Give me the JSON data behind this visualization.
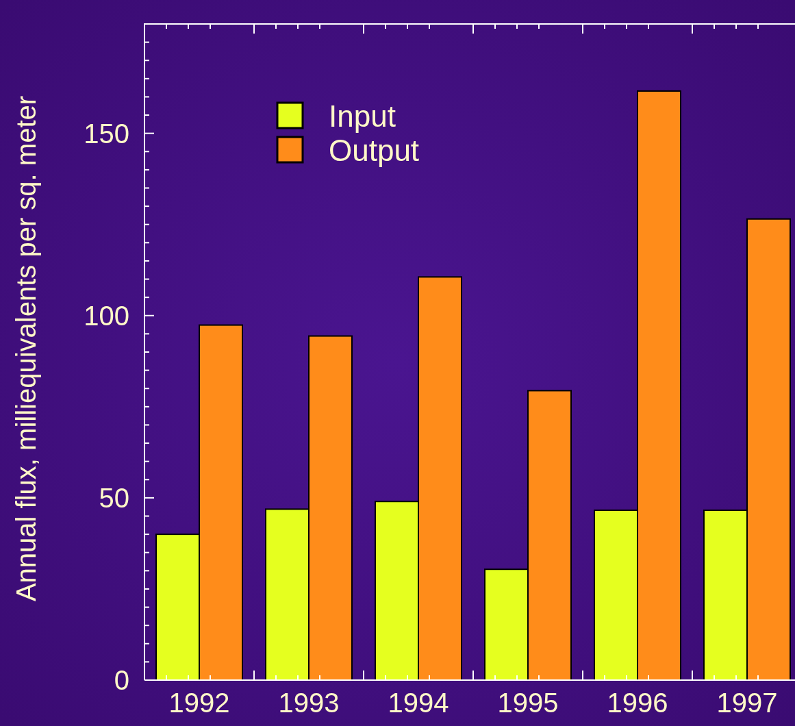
{
  "chart_data": {
    "type": "bar",
    "ylabel": "Annual flux, milliequivalents per sq. meter",
    "categories": [
      "1992",
      "1993",
      "1994",
      "1995",
      "1996",
      "1997"
    ],
    "series": [
      {
        "name": "Input",
        "color": "#e5ff1f",
        "values": [
          40.0,
          46.9,
          49.0,
          30.4,
          46.6,
          46.6
        ]
      },
      {
        "name": "Output",
        "color": "#ff8c1a",
        "values": [
          97.4,
          94.4,
          110.6,
          79.4,
          161.6,
          126.5
        ]
      }
    ],
    "ylim": [
      0,
      180
    ],
    "yticks": [
      0,
      {
        "value": 5,
        "label": null
      },
      {
        "value": 10,
        "label": null
      },
      {
        "value": 15,
        "label": null
      },
      {
        "value": 20,
        "label": null
      },
      {
        "value": 25,
        "label": null
      },
      {
        "value": 30,
        "label": null
      },
      {
        "value": 35,
        "label": null
      },
      {
        "value": 40,
        "label": null
      },
      {
        "value": 45,
        "label": null
      },
      50,
      {
        "value": 55,
        "label": null
      },
      {
        "value": 60,
        "label": null
      },
      {
        "value": 65,
        "label": null
      },
      {
        "value": 70,
        "label": null
      },
      {
        "value": 75,
        "label": null
      },
      {
        "value": 80,
        "label": null
      },
      {
        "value": 85,
        "label": null
      },
      {
        "value": 90,
        "label": null
      },
      {
        "value": 95,
        "label": null
      },
      100,
      {
        "value": 105,
        "label": null
      },
      {
        "value": 110,
        "label": null
      },
      {
        "value": 115,
        "label": null
      },
      {
        "value": 120,
        "label": null
      },
      {
        "value": 125,
        "label": null
      },
      {
        "value": 130,
        "label": null
      },
      {
        "value": 135,
        "label": null
      },
      {
        "value": 140,
        "label": null
      },
      {
        "value": 145,
        "label": null
      },
      150,
      {
        "value": 155,
        "label": null
      },
      {
        "value": 160,
        "label": null
      },
      {
        "value": 165,
        "label": null
      },
      {
        "value": 170,
        "label": null
      },
      {
        "value": 175,
        "label": null
      }
    ],
    "grid": false,
    "legend": "top left"
  }
}
